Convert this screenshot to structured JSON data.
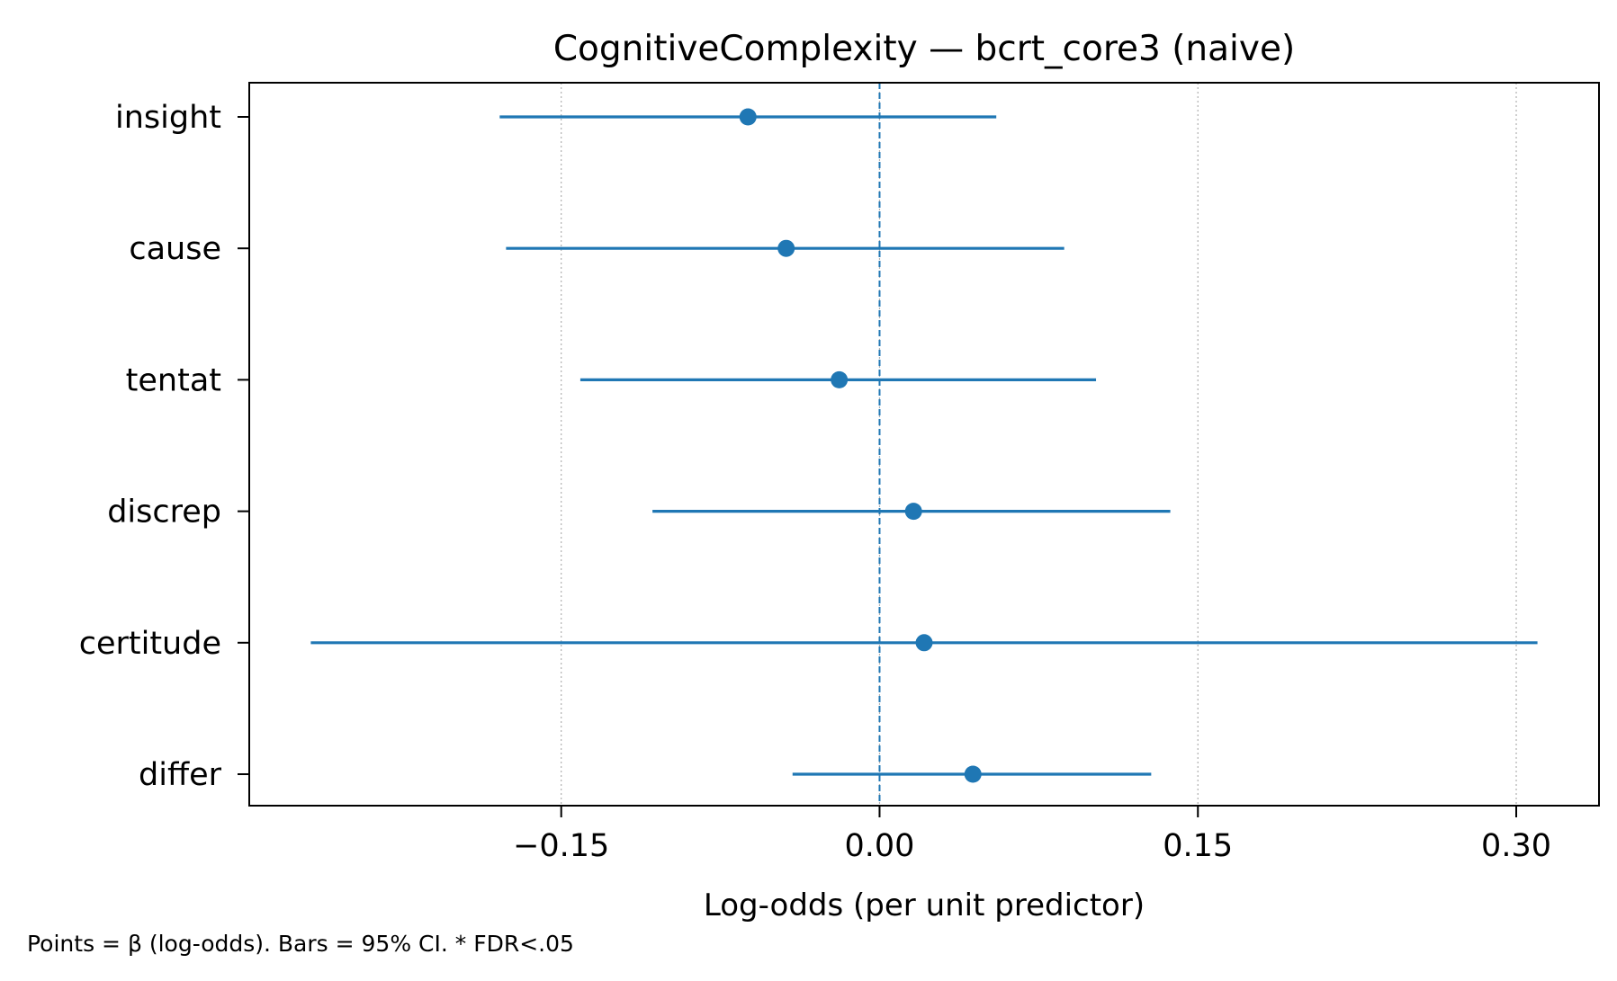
{
  "chart_data": {
    "type": "forest",
    "title": "CognitiveComplexity — bcrt_core3 (naive)",
    "xlabel": "Log-odds (per unit predictor)",
    "ylabel": "",
    "footnote": "Points = β (log-odds). Bars = 95% CI. * FDR<.05",
    "xlim": [
      -0.297,
      0.339
    ],
    "xticks": [
      -0.15,
      0.0,
      0.15,
      0.3
    ],
    "xtick_labels": [
      "−0.15",
      "0.00",
      "0.15",
      "0.30"
    ],
    "reference_line": 0.0,
    "grid": "x-dotted",
    "colors": {
      "series": "#1f77b4",
      "grid": "#b0b0b0",
      "axis": "#000000"
    },
    "rows": [
      {
        "label": "insight",
        "estimate": -0.062,
        "ci_low": -0.179,
        "ci_high": 0.055
      },
      {
        "label": "cause",
        "estimate": -0.044,
        "ci_low": -0.176,
        "ci_high": 0.087
      },
      {
        "label": "tentat",
        "estimate": -0.019,
        "ci_low": -0.141,
        "ci_high": 0.102
      },
      {
        "label": "discrep",
        "estimate": 0.016,
        "ci_low": -0.107,
        "ci_high": 0.137
      },
      {
        "label": "certitude",
        "estimate": 0.021,
        "ci_low": -0.268,
        "ci_high": 0.31
      },
      {
        "label": "differ",
        "estimate": 0.044,
        "ci_low": -0.041,
        "ci_high": 0.128
      }
    ]
  }
}
